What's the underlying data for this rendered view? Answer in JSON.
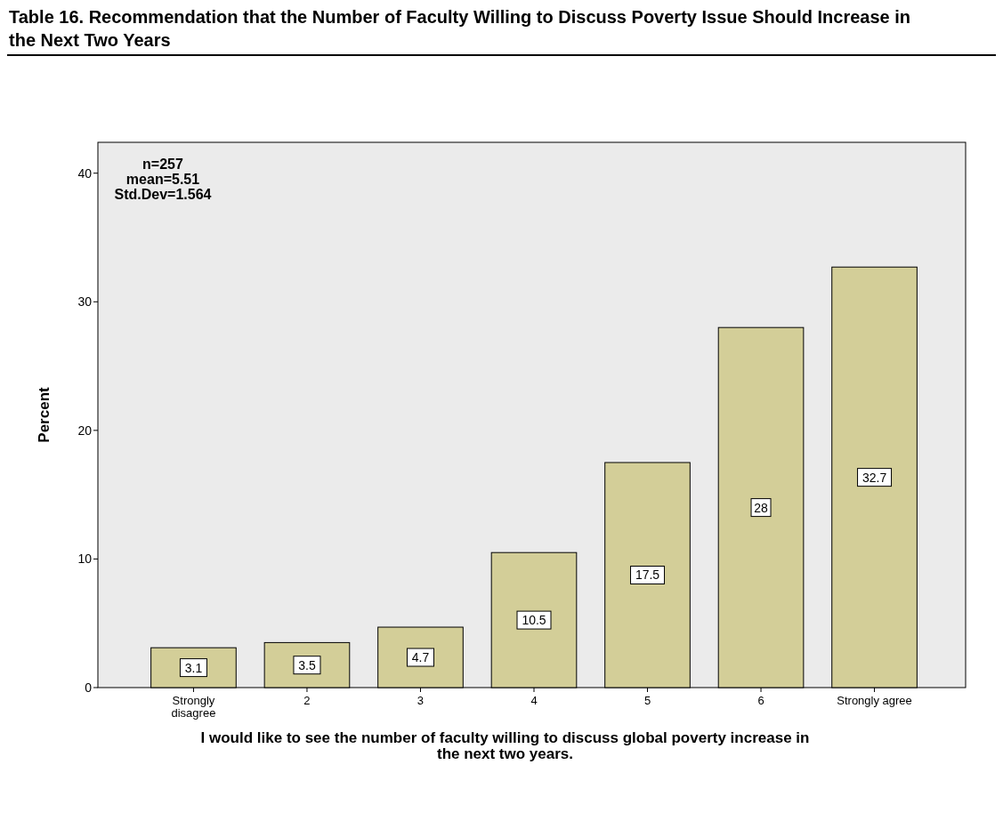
{
  "chart_data": {
    "type": "bar",
    "title": "Table 16. Recommendation that the Number of Faculty Willing to Discuss Poverty Issue Should Increase in the Next Two Years",
    "xlabel": "I would like to see the number of faculty willing to discuss global poverty increase in the next two years.",
    "ylabel": "Percent",
    "categories": [
      "Strongly disagree",
      "2",
      "3",
      "4",
      "5",
      "6",
      "Strongly agree"
    ],
    "values": [
      3.1,
      3.5,
      4.7,
      10.5,
      17.5,
      28,
      32.7
    ],
    "color": "#d3ce98",
    "ylim": [
      0,
      42.4
    ],
    "yticks": [
      0,
      10,
      20,
      30,
      40
    ],
    "grid": false,
    "data_labels": true,
    "annotations": [
      "n=257",
      "mean=5.51",
      "Std.Dev=1.564"
    ]
  }
}
